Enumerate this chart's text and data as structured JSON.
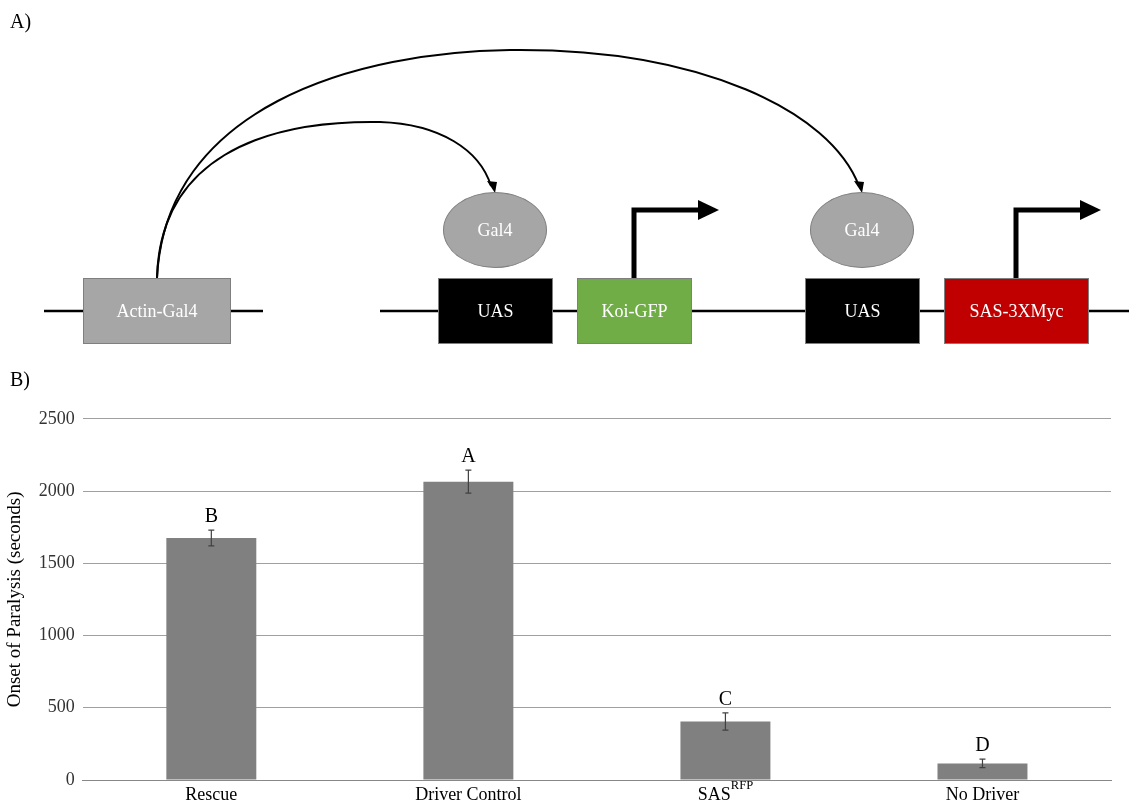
{
  "chart_data": [
    {
      "type": "other",
      "title": "A)",
      "annotations": [
        "Actin-Gal4",
        "Gal4",
        "UAS",
        "Koi-GFP",
        "Gal4",
        "UAS",
        "SAS-3XMyc"
      ]
    },
    {
      "type": "bar",
      "title": "B)",
      "ylabel": "Onset of Paralysis (seconds)",
      "categories": [
        "Rescue",
        "Driver Control",
        "SAS$^{RFP}$",
        "No Driver"
      ],
      "values": [
        1675,
        2065,
        405,
        115
      ],
      "errors": [
        55,
        80,
        60,
        30
      ],
      "color": "#808080",
      "ylim": [
        0,
        2500
      ],
      "yticks": [
        0,
        500,
        1000,
        1500,
        2000,
        2500
      ],
      "grid": "y",
      "legend": false,
      "annotations": [
        {
          "text": "B",
          "x": "Rescue",
          "y": 1730
        },
        {
          "text": "A",
          "x": "Driver Control",
          "y": 2145
        },
        {
          "text": "C",
          "x": "SAS$^{RFP}$",
          "y": 465
        },
        {
          "text": "D",
          "x": "No Driver",
          "y": 145
        }
      ]
    }
  ]
}
